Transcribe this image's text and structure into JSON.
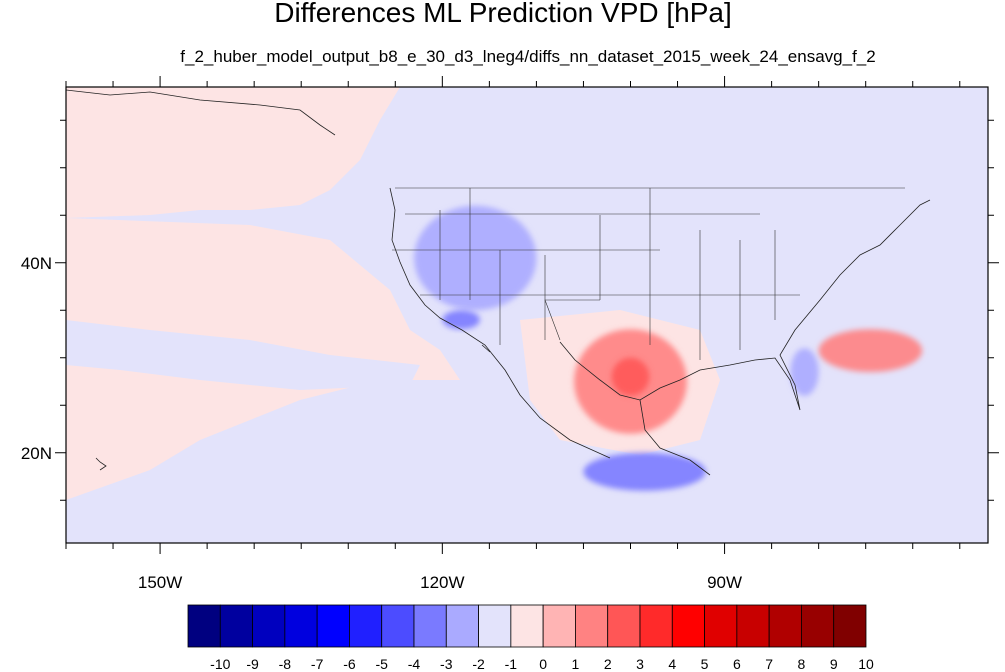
{
  "chart_data": {
    "type": "heatmap",
    "title": "Differences ML Prediction VPD [hPa]",
    "subtitle": "f_2_huber_model_output_b8_e_30_d3_lneg4/diffs_nn_dataset_2015_week_24_ensavg_f_2",
    "x_axis": {
      "range": [
        -160,
        -62
      ],
      "ticks": [
        {
          "value": -150,
          "label": "150W"
        },
        {
          "value": -120,
          "label": "120W"
        },
        {
          "value": -90,
          "label": "90W"
        }
      ],
      "minor_step": 5
    },
    "y_axis": {
      "range": [
        10.5,
        58.5
      ],
      "ticks": [
        {
          "value": 20,
          "label": "20N"
        },
        {
          "value": 40,
          "label": "40N"
        }
      ],
      "minor_step": 5
    },
    "colorbar": {
      "placement": "bottom",
      "labels": [
        "-10",
        "-9",
        "-8",
        "-7",
        "-6",
        "-5",
        "-4",
        "-3",
        "-2",
        "-1",
        "0",
        "1",
        "2",
        "3",
        "4",
        "5",
        "6",
        "7",
        "8",
        "9",
        "10"
      ],
      "colors": [
        "#000080",
        "#00009f",
        "#0000bf",
        "#0000df",
        "#0000ff",
        "#2020ff",
        "#4c4cff",
        "#7a7aff",
        "#aaaaff",
        "#e3e3fb",
        "#fde4e4",
        "#ffb4b4",
        "#ff8282",
        "#ff5656",
        "#ff2a2a",
        "#ff0000",
        "#e00000",
        "#c80000",
        "#b00000",
        "#980000",
        "#800000"
      ]
    },
    "background_level": {
      "land_and_mid_ocean": "-1 to 0",
      "western_ocean": "0 to 1"
    },
    "regions": [
      {
        "name": "texas-gulf",
        "level": "1 to 2",
        "lon": [
          -106,
          -94
        ],
        "lat": [
          22,
          33
        ]
      },
      {
        "name": "texas-core",
        "level": "2 to 3",
        "lon": [
          -102,
          -98
        ],
        "lat": [
          26,
          30
        ]
      },
      {
        "name": "atlantic",
        "level": "1 to 2",
        "lon": [
          -80,
          -69
        ],
        "lat": [
          28.5,
          33
        ]
      },
      {
        "name": "great-basin",
        "level": "-3 to -2",
        "lon": [
          -123,
          -110
        ],
        "lat": [
          35,
          46
        ]
      },
      {
        "name": "southern-california",
        "level": "-4 to -3",
        "lon": [
          -120,
          -116
        ],
        "lat": [
          33,
          35
        ]
      },
      {
        "name": "florida",
        "level": "-3 to -2",
        "lon": [
          -83,
          -80
        ],
        "lat": [
          26,
          31
        ]
      },
      {
        "name": "southern-mexico",
        "level": "-4 to -3",
        "lon": [
          -105,
          -92
        ],
        "lat": [
          16,
          20
        ]
      }
    ]
  }
}
